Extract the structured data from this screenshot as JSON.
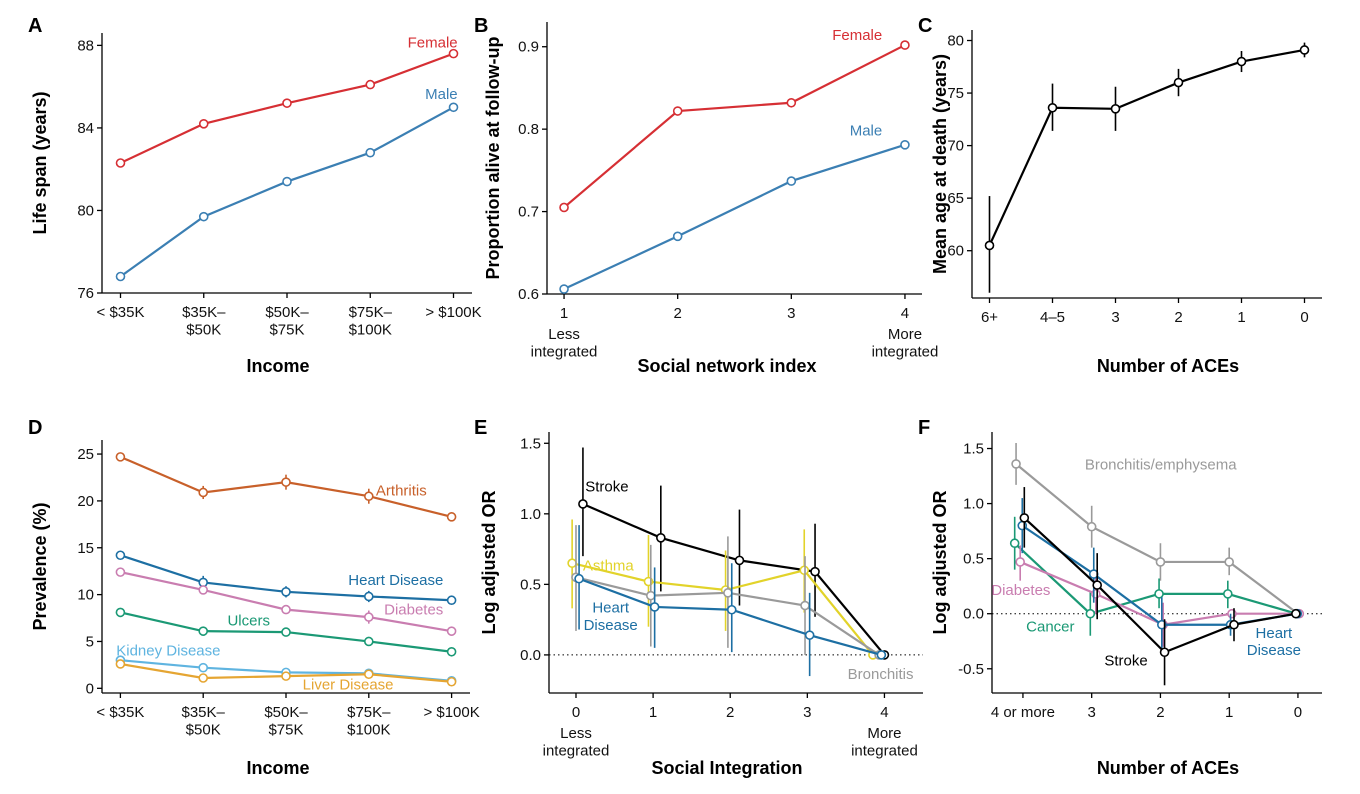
{
  "chart_data": [
    {
      "panel": "A",
      "type": "line",
      "categories": [
        "< $35K",
        "$35K–\n$50K",
        "$50K–\n$75K",
        "$75K–\n$100K",
        "> $100K"
      ],
      "series": [
        {
          "name": "Female",
          "values": [
            82.3,
            84.2,
            85.2,
            86.1,
            87.6
          ],
          "color": "#d62f34"
        },
        {
          "name": "Male",
          "values": [
            76.8,
            79.7,
            81.4,
            82.8,
            85.0
          ],
          "color": "#3b7fb3"
        }
      ],
      "xlabel": "Income",
      "ylabel": "Life span (years)",
      "ylim": [
        76,
        88.6
      ],
      "yticks": [
        76,
        80,
        84,
        88
      ],
      "ytick_labels": [
        "76",
        "80",
        "84",
        "88"
      ]
    },
    {
      "panel": "B",
      "type": "line",
      "x": [
        1,
        2,
        3,
        4
      ],
      "xtick_labels": [
        "1",
        "2",
        "3",
        "4"
      ],
      "xtick_sub": {
        "1": "Less\nintegrated",
        "4": "More\nintegrated"
      },
      "series": [
        {
          "name": "Female",
          "values": [
            0.705,
            0.822,
            0.832,
            0.902
          ],
          "color": "#d62f34"
        },
        {
          "name": "Male",
          "values": [
            0.606,
            0.67,
            0.737,
            0.781
          ],
          "color": "#3b7fb3"
        }
      ],
      "xlabel": "Social network index",
      "ylabel": "Proportion alive at follow-up",
      "ylim": [
        0.6,
        0.93
      ],
      "yticks": [
        0.6,
        0.7,
        0.8,
        0.9
      ],
      "ytick_labels": [
        "0.6",
        "0.7",
        "0.8",
        "0.9"
      ]
    },
    {
      "panel": "C",
      "type": "line",
      "categories": [
        "6+",
        "4–5",
        "3",
        "2",
        "1",
        "0"
      ],
      "series": [
        {
          "values": [
            60.5,
            73.6,
            73.5,
            76.0,
            78.0,
            79.1
          ],
          "err_low": [
            56.0,
            71.4,
            71.4,
            74.7,
            77.0,
            78.4
          ],
          "err_high": [
            65.2,
            75.9,
            75.6,
            77.3,
            79.0,
            79.8
          ],
          "color": "#000000"
        }
      ],
      "xlabel": "Number of ACEs",
      "ylabel": "Mean age at death (years)",
      "ylim": [
        55.5,
        81
      ],
      "yticks": [
        60,
        65,
        70,
        75,
        80
      ],
      "ytick_labels": [
        "60",
        "65",
        "70",
        "75",
        "80"
      ]
    },
    {
      "panel": "D",
      "type": "line",
      "categories": [
        "< $35K",
        "$35K–\n$50K",
        "$50K–\n$75K",
        "$75K–\n$100K",
        "> $100K"
      ],
      "series": [
        {
          "name": "Arthritis",
          "values": [
            24.7,
            20.9,
            22.0,
            20.5,
            18.3
          ],
          "err": [
            0.2,
            0.7,
            0.8,
            0.8,
            0.4
          ],
          "color": "#c8602a"
        },
        {
          "name": "Heart Disease",
          "values": [
            14.2,
            11.3,
            10.3,
            9.8,
            9.4
          ],
          "err": [
            0.1,
            0.7,
            0.6,
            0.6,
            0.4
          ],
          "color": "#1d6fa3"
        },
        {
          "name": "Diabetes",
          "values": [
            12.4,
            10.5,
            8.4,
            7.6,
            6.1
          ],
          "err": [
            0.1,
            0.4,
            0.4,
            0.7,
            0.3
          ],
          "color": "#c97db0"
        },
        {
          "name": "Ulcers",
          "values": [
            8.1,
            6.1,
            6.0,
            5.0,
            3.9
          ],
          "err": [
            0.1,
            0.3,
            0.3,
            0.3,
            0.2
          ],
          "color": "#1b9975"
        },
        {
          "name": "Kidney Disease",
          "values": [
            3.0,
            2.2,
            1.7,
            1.6,
            0.8
          ],
          "err": [
            0.1,
            0.3,
            0.3,
            0.3,
            0.2
          ],
          "color": "#5fb4e0"
        },
        {
          "name": "Liver Disease",
          "values": [
            2.6,
            1.1,
            1.3,
            1.5,
            0.7
          ],
          "err": [
            0.1,
            0.3,
            0.3,
            0.3,
            0.2
          ],
          "color": "#e5a532"
        }
      ],
      "xlabel": "Income",
      "ylabel": "Prevalence (%)",
      "ylim": [
        -0.5,
        26.5
      ],
      "yticks": [
        0,
        5,
        10,
        15,
        20,
        25
      ],
      "ytick_labels": [
        "0",
        "5",
        "10",
        "15",
        "20",
        "25"
      ]
    },
    {
      "panel": "E",
      "type": "line",
      "x": [
        0,
        1,
        2,
        3,
        4
      ],
      "xtick_labels": [
        "0",
        "1",
        "2",
        "3",
        "4"
      ],
      "xtick_sub": {
        "0": "Less\nintegrated",
        "4": "More\nintegrated"
      },
      "series": [
        {
          "name": "Stroke",
          "x": [
            0.09,
            1.1,
            2.12,
            3.1,
            4.0
          ],
          "values": [
            1.07,
            0.83,
            0.67,
            0.59,
            0.0
          ],
          "err_low": [
            0.7,
            0.45,
            0.35,
            0.27,
            0.0
          ],
          "err_high": [
            1.47,
            1.2,
            1.03,
            0.93,
            0.0
          ],
          "color": "#000000"
        },
        {
          "name": "Asthma",
          "x": [
            -0.05,
            0.94,
            1.94,
            2.96,
            3.85
          ],
          "values": [
            0.65,
            0.52,
            0.46,
            0.6,
            0.0
          ],
          "err_low": [
            0.33,
            0.2,
            0.17,
            0.3,
            0.0
          ],
          "err_high": [
            0.96,
            0.85,
            0.74,
            0.89,
            0.0
          ],
          "color": "#e2d32a"
        },
        {
          "name": "Bronchitis",
          "x": [
            0.0,
            0.97,
            1.97,
            2.97,
            3.93
          ],
          "values": [
            0.55,
            0.42,
            0.44,
            0.35,
            0.0
          ],
          "err_low": [
            0.17,
            0.06,
            0.05,
            0.0,
            0.0
          ],
          "err_high": [
            0.92,
            0.78,
            0.84,
            0.7,
            0.0
          ],
          "color": "#9a9a9a"
        },
        {
          "name": "Heart\nDisease",
          "x": [
            0.04,
            1.02,
            2.02,
            3.03,
            3.96
          ],
          "values": [
            0.54,
            0.34,
            0.32,
            0.14,
            0.0
          ],
          "err_low": [
            0.18,
            0.05,
            0.02,
            -0.15,
            0.0
          ],
          "err_high": [
            0.92,
            0.62,
            0.65,
            0.44,
            0.0
          ],
          "color": "#1d6fa3"
        }
      ],
      "xlabel": "Social Integration",
      "ylabel": "Log adjusted OR",
      "xlim": [
        -0.35,
        4.5
      ],
      "ylim": [
        -0.27,
        1.58
      ],
      "yticks": [
        0.0,
        0.5,
        1.0,
        1.5
      ],
      "ytick_labels": [
        "0.0",
        "0.5",
        "1.0",
        "1.5"
      ]
    },
    {
      "panel": "F",
      "type": "line",
      "x": [
        4,
        3,
        2,
        1,
        0
      ],
      "xtick_labels": [
        "4 or more",
        "3",
        "2",
        "1",
        "0"
      ],
      "series": [
        {
          "name": "Bronchitis/emphysema",
          "x": [
            4.1,
            3.0,
            2.0,
            1.0,
            0.0
          ],
          "values": [
            1.36,
            0.79,
            0.47,
            0.47,
            0.0
          ],
          "err_low": [
            1.17,
            0.6,
            0.3,
            0.35,
            0.0
          ],
          "err_high": [
            1.55,
            0.98,
            0.64,
            0.6,
            0.0
          ],
          "color": "#9a9a9a"
        },
        {
          "name": "Cancer",
          "x": [
            4.12,
            3.02,
            2.02,
            1.02,
            0.02
          ],
          "values": [
            0.64,
            0.0,
            0.18,
            0.18,
            0.0
          ],
          "err_low": [
            0.4,
            -0.2,
            0.05,
            0.05,
            0.0
          ],
          "err_high": [
            0.88,
            0.2,
            0.32,
            0.3,
            0.0
          ],
          "color": "#1b9975"
        },
        {
          "name": "Diabetes",
          "x": [
            4.04,
            2.94,
            1.96,
            0.96,
            -0.02
          ],
          "values": [
            0.47,
            0.18,
            -0.1,
            0.0,
            0.0
          ],
          "err_low": [
            0.3,
            0.0,
            -0.3,
            0.0,
            0.0
          ],
          "err_high": [
            0.62,
            0.35,
            0.1,
            0.0,
            0.0
          ],
          "color": "#c97db0"
        },
        {
          "name": "Heart\nDisease",
          "x": [
            4.01,
            2.97,
            1.98,
            0.98,
            0.01
          ],
          "values": [
            0.8,
            0.36,
            -0.1,
            -0.1,
            0.0
          ],
          "err_low": [
            0.55,
            0.1,
            -0.35,
            -0.2,
            0.0
          ],
          "err_high": [
            1.05,
            0.6,
            0.15,
            0.0,
            0.0
          ],
          "color": "#1d6fa3"
        },
        {
          "name": "Stroke",
          "x": [
            3.98,
            2.92,
            1.94,
            0.93,
            0.03
          ],
          "values": [
            0.87,
            0.26,
            -0.35,
            -0.1,
            0.0
          ],
          "err_low": [
            0.6,
            -0.05,
            -0.65,
            -0.25,
            0.0
          ],
          "err_high": [
            1.15,
            0.55,
            -0.05,
            0.05,
            0.0
          ],
          "color": "#000000"
        }
      ],
      "xlabel": "Number of ACEs",
      "ylabel": "Log adjusted OR",
      "xlim": [
        4.45,
        -0.35
      ],
      "ylim": [
        -0.72,
        1.65
      ],
      "yticks": [
        -0.5,
        0.0,
        0.5,
        1.0,
        1.5
      ],
      "ytick_labels": [
        "-0.5",
        "0.0",
        "0.5",
        "1.0",
        "1.5"
      ]
    }
  ]
}
